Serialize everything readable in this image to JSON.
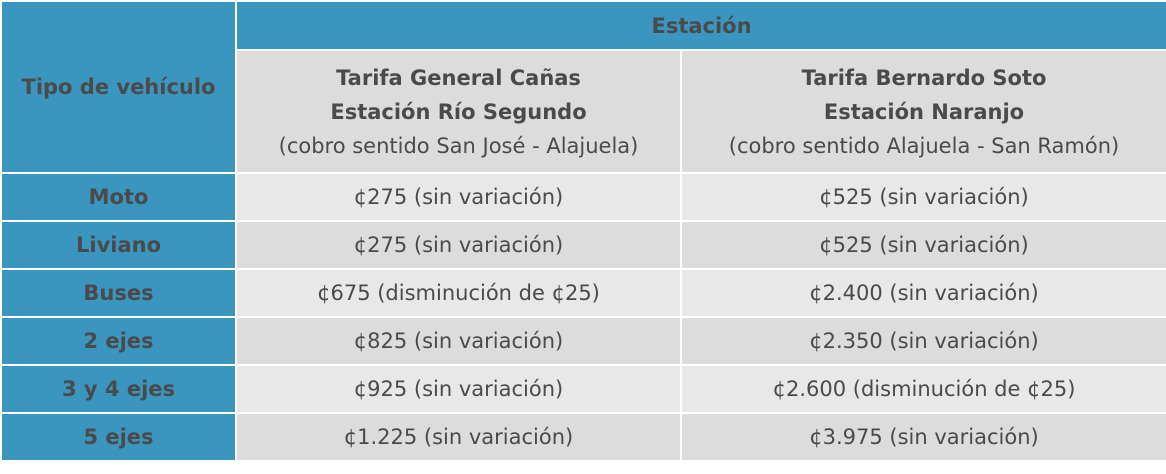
{
  "header": {
    "type_label": "Tipo de vehículo",
    "station_label": "Estación",
    "station_a": {
      "line1": "Tarifa General Cañas",
      "line2": "Estación Río Segundo",
      "line3": "(cobro sentido San José - Alajuela)"
    },
    "station_b": {
      "line1": "Tarifa Bernardo Soto",
      "line2": "Estación Naranjo",
      "line3": "(cobro sentido Alajuela - San Ramón)"
    }
  },
  "rows": [
    {
      "type": "Moto",
      "a": "¢275 (sin variación)",
      "b": "¢525 (sin variación)"
    },
    {
      "type": "Liviano",
      "a": "¢275  (sin variación)",
      "b": "¢525 (sin variación)"
    },
    {
      "type": "Buses",
      "a": "¢675 (disminución de ¢25)",
      "b": "¢2.400 (sin variación)"
    },
    {
      "type": "2 ejes",
      "a": "¢825 (sin variación)",
      "b": "¢2.350 (sin variación)"
    },
    {
      "type": "3 y 4 ejes",
      "a": "¢925 (sin variación)",
      "b": "¢2.600 (disminución de ¢25)"
    },
    {
      "type": "5 ejes",
      "a": "¢1.225 (sin variación)",
      "b": "¢3.975 (sin variación)"
    }
  ],
  "colors": {
    "header_blue": "#3a96be",
    "cell_gray_light": "#e8e8e8",
    "cell_gray_dark": "#dcdcdc",
    "text": "#4a4a4a"
  }
}
